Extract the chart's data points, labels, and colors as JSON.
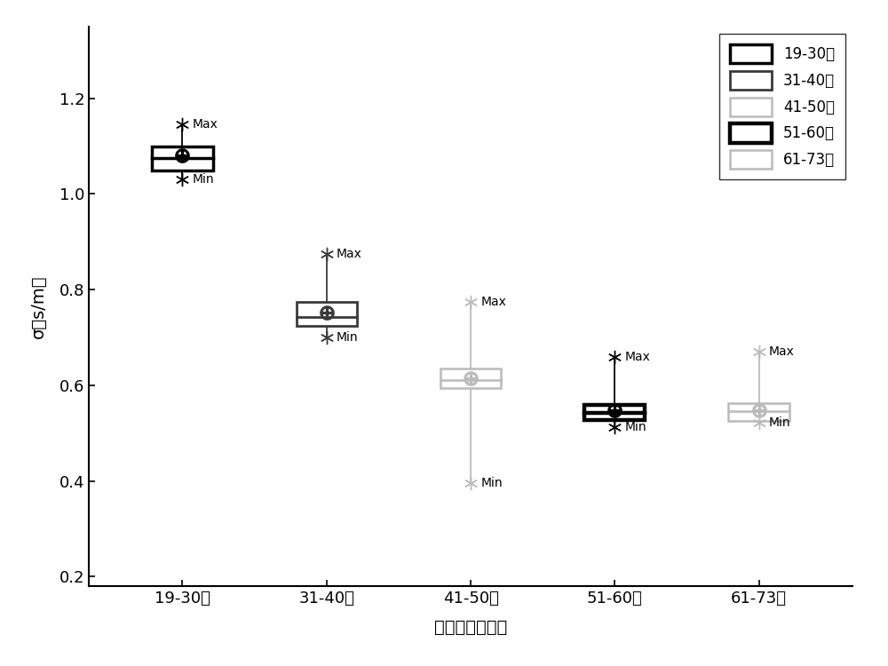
{
  "categories": [
    "19-30岁",
    "31-40岁",
    "41-50岁",
    "51-60岁",
    "61-73岁"
  ],
  "boxes": [
    {
      "label": "19-30岁",
      "q1": 1.05,
      "median": 1.075,
      "q3": 1.1,
      "mean": 1.08,
      "whisker_low": 1.03,
      "whisker_high": 1.145,
      "edge_color": "#000000",
      "linewidth": 2.5,
      "whisker_color": "#000000",
      "marker_color": "#000000"
    },
    {
      "label": "31-40岁",
      "q1": 0.725,
      "median": 0.742,
      "q3": 0.775,
      "mean": 0.752,
      "whisker_low": 0.7,
      "whisker_high": 0.875,
      "edge_color": "#3a3a3a",
      "linewidth": 2.0,
      "whisker_color": "#3a3a3a",
      "marker_color": "#3a3a3a"
    },
    {
      "label": "41-50岁",
      "q1": 0.595,
      "median": 0.61,
      "q3": 0.635,
      "mean": 0.615,
      "whisker_low": 0.395,
      "whisker_high": 0.775,
      "edge_color": "#bbbbbb",
      "linewidth": 1.8,
      "whisker_color": "#bbbbbb",
      "marker_color": "#bbbbbb"
    },
    {
      "label": "51-60岁",
      "q1": 0.528,
      "median": 0.542,
      "q3": 0.558,
      "mean": 0.548,
      "whisker_low": 0.512,
      "whisker_high": 0.66,
      "edge_color": "#000000",
      "linewidth": 3.2,
      "whisker_color": "#000000",
      "marker_color": "#000000"
    },
    {
      "label": "61-73岁",
      "q1": 0.525,
      "median": 0.545,
      "q3": 0.563,
      "mean": 0.548,
      "whisker_low": 0.522,
      "whisker_high": 0.67,
      "edge_color": "#bbbbbb",
      "linewidth": 1.8,
      "whisker_color": "#bbbbbb",
      "marker_color": "#bbbbbb"
    }
  ],
  "box_width": 0.42,
  "xlabel": "腺体不同年龄段",
  "ylabel": "σ（s/m）",
  "ylim": [
    0.18,
    1.35
  ],
  "yticks": [
    0.2,
    0.4,
    0.6,
    0.8,
    1.0,
    1.2
  ],
  "background_color": "#ffffff",
  "legend_labels": [
    "19-30岁",
    "31-40岁",
    "41-50岁",
    "51-60岁",
    "61-73岁"
  ],
  "legend_edge_colors": [
    "#000000",
    "#3a3a3a",
    "#bbbbbb",
    "#000000",
    "#bbbbbb"
  ],
  "legend_linewidths": [
    2.5,
    2.0,
    1.8,
    3.2,
    1.8
  ]
}
